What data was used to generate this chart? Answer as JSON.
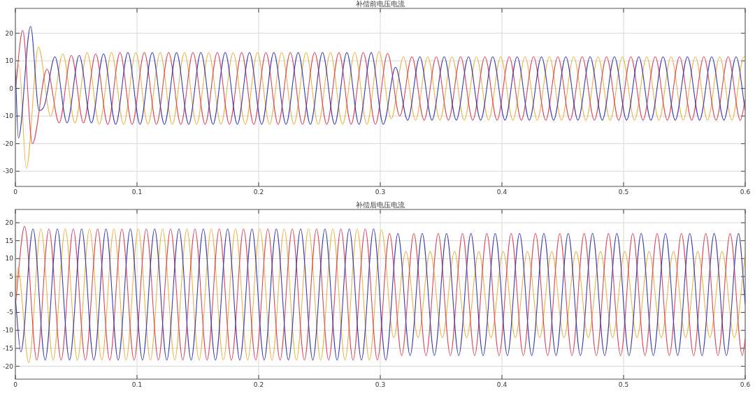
{
  "chart_data": [
    {
      "type": "line",
      "title": "补偿前电压电流",
      "xlim": [
        0,
        0.6
      ],
      "ylim": [
        -35.5,
        29
      ],
      "xticks": [
        0,
        0.1,
        0.2,
        0.3,
        0.4,
        0.5,
        0.6
      ],
      "yticks": [
        -30,
        -20,
        -10,
        0,
        10,
        20
      ],
      "grid": true,
      "series": [
        {
          "color": "#e8b54a",
          "x": [
            0,
            0.003,
            0.009,
            0.019,
            0.029,
            0.039,
            0.049,
            0.059,
            0.069,
            0.079,
            0.089,
            0.099,
            0.109,
            0.119,
            0.129,
            0.139,
            0.149,
            0.159,
            0.169,
            0.179,
            0.189,
            0.199,
            0.209,
            0.219,
            0.229,
            0.239,
            0.249,
            0.259,
            0.269,
            0.279,
            0.289,
            0.299,
            0.309,
            0.319,
            0.329,
            0.339,
            0.349,
            0.359,
            0.369,
            0.379,
            0.389,
            0.399,
            0.409,
            0.419,
            0.429,
            0.439,
            0.449,
            0.459,
            0.469,
            0.479,
            0.489,
            0.499,
            0.509,
            0.519,
            0.529,
            0.539,
            0.549,
            0.559,
            0.569,
            0.579,
            0.589,
            0.599,
            0.6
          ],
          "values": [
            0,
            8.5,
            -29,
            15,
            -10,
            12.5,
            -12.5,
            13,
            -13,
            13,
            -13,
            13,
            -13,
            13,
            -13,
            13,
            -13,
            13,
            -13,
            13,
            -13,
            13,
            -13,
            13,
            -13,
            13,
            -13,
            13,
            -13,
            13,
            -13,
            13.3,
            -11,
            11.5,
            -11.5,
            11.5,
            -11.5,
            11.5,
            -11.5,
            11.5,
            -11.5,
            11.5,
            -11.5,
            11.5,
            -11.5,
            11.5,
            -11.5,
            11.5,
            -11.5,
            11.5,
            -11.5,
            11.5,
            -11.5,
            11.5,
            -11.5,
            11.5,
            -11.5,
            11.5,
            -11.5,
            11.5,
            -11.5,
            11.5,
            11.3
          ]
        },
        {
          "color": "#d9475d",
          "x": [
            0,
            0.006,
            0.014,
            0.026,
            0.036,
            0.046,
            0.056,
            0.066,
            0.076,
            0.086,
            0.096,
            0.106,
            0.116,
            0.126,
            0.136,
            0.146,
            0.156,
            0.166,
            0.176,
            0.186,
            0.196,
            0.206,
            0.216,
            0.226,
            0.236,
            0.246,
            0.256,
            0.266,
            0.276,
            0.286,
            0.296,
            0.306,
            0.316,
            0.326,
            0.336,
            0.346,
            0.356,
            0.366,
            0.376,
            0.386,
            0.396,
            0.406,
            0.416,
            0.426,
            0.436,
            0.446,
            0.456,
            0.466,
            0.476,
            0.486,
            0.496,
            0.506,
            0.516,
            0.526,
            0.536,
            0.546,
            0.556,
            0.566,
            0.576,
            0.586,
            0.596,
            0.6
          ],
          "values": [
            0,
            21,
            -20,
            7,
            -12.5,
            12,
            -12.5,
            12.5,
            -13,
            13,
            -13,
            13,
            -13,
            13,
            -13,
            13,
            -13,
            13,
            -13,
            13,
            -13,
            13,
            -13,
            13,
            -13,
            13,
            -13,
            13,
            -13,
            13,
            -13,
            12.7,
            -10,
            11.5,
            -11.5,
            11.5,
            -11.5,
            11.5,
            -11.5,
            11.5,
            -11.5,
            11.5,
            -11.5,
            11.5,
            -11.5,
            11.5,
            -11.5,
            11.5,
            -11.5,
            11.5,
            -11.5,
            11.5,
            -11.5,
            11.5,
            -11.5,
            11.5,
            -11.5,
            11.5,
            -11.5,
            11.5,
            -11.5,
            -4
          ]
        },
        {
          "color": "#3b3bb0",
          "x": [
            0,
            0.0025,
            0.0125,
            0.0195,
            0.024,
            0.0325,
            0.0425,
            0.0525,
            0.0625,
            0.0725,
            0.0825,
            0.0925,
            0.1025,
            0.1125,
            0.1225,
            0.1325,
            0.1425,
            0.1525,
            0.1625,
            0.1725,
            0.1825,
            0.1925,
            0.2025,
            0.2125,
            0.2225,
            0.2325,
            0.2425,
            0.2525,
            0.2625,
            0.2725,
            0.2825,
            0.2925,
            0.3025,
            0.3125,
            0.3225,
            0.3325,
            0.3425,
            0.3525,
            0.3625,
            0.3725,
            0.3825,
            0.3925,
            0.4025,
            0.4125,
            0.4225,
            0.4325,
            0.4425,
            0.4525,
            0.4625,
            0.4725,
            0.4825,
            0.4925,
            0.5025,
            0.5125,
            0.5225,
            0.5325,
            0.5425,
            0.5525,
            0.5625,
            0.5725,
            0.5825,
            0.5925,
            0.6
          ],
          "values": [
            7,
            -18,
            22.5,
            -8,
            -6,
            11.5,
            -12.5,
            12,
            -12.5,
            12.5,
            -13,
            13,
            -13,
            13,
            -13,
            13,
            -13,
            13,
            -13,
            13,
            -13,
            13,
            -13,
            13,
            -13,
            13,
            -13,
            13,
            -13,
            13,
            -13,
            13,
            -13,
            7.7,
            -11.5,
            11.5,
            -11.5,
            11.5,
            -11.5,
            11.5,
            -11.5,
            11.5,
            -11.5,
            11.5,
            -11.5,
            11.5,
            -11.5,
            11.5,
            -11.5,
            11.5,
            -11.5,
            11.5,
            -11.5,
            11.5,
            -11.5,
            11.5,
            -11.5,
            11.5,
            -11.5,
            11.5,
            -11.5,
            11.5,
            -8
          ]
        }
      ]
    },
    {
      "type": "line",
      "title": "补偿后电压电流",
      "xlim": [
        0,
        0.6
      ],
      "ylim": [
        -23.6,
        23.7
      ],
      "xticks": [
        0,
        0.1,
        0.2,
        0.3,
        0.4,
        0.5,
        0.6
      ],
      "yticks": [
        -20,
        -15,
        -10,
        -5,
        0,
        5,
        10,
        15,
        20
      ],
      "grid": true,
      "series": [
        {
          "color": "#e8b54a",
          "x": [
            0,
            0.002,
            0.011,
            0.021,
            0.031,
            0.041,
            0.051,
            0.061,
            0.071,
            0.081,
            0.091,
            0.101,
            0.111,
            0.121,
            0.131,
            0.141,
            0.151,
            0.161,
            0.171,
            0.181,
            0.191,
            0.201,
            0.211,
            0.221,
            0.231,
            0.241,
            0.251,
            0.261,
            0.271,
            0.281,
            0.291,
            0.301,
            0.311,
            0.321,
            0.331,
            0.341,
            0.351,
            0.361,
            0.371,
            0.381,
            0.391,
            0.401,
            0.411,
            0.421,
            0.431,
            0.441,
            0.451,
            0.461,
            0.471,
            0.481,
            0.491,
            0.501,
            0.511,
            0.521,
            0.531,
            0.541,
            0.551,
            0.561,
            0.571,
            0.581,
            0.591,
            0.6
          ],
          "values": [
            0,
            7.5,
            -19,
            18.3,
            -18.3,
            18.3,
            -18.3,
            18.3,
            -18.3,
            18.3,
            -18.3,
            18.3,
            -18.3,
            18.3,
            -18.3,
            18.3,
            -18.3,
            18.3,
            -18.3,
            18.3,
            -18.3,
            18.3,
            -18.3,
            18.3,
            -18.3,
            18.3,
            -18.3,
            18.3,
            -18.3,
            18.3,
            -18.3,
            18,
            -12,
            12,
            -12,
            12,
            -12,
            12,
            -12,
            12,
            -12,
            12,
            -12,
            12,
            -12,
            12,
            -12,
            12,
            -12,
            12,
            -12,
            12,
            -12,
            12,
            -12,
            12,
            -12,
            12,
            -12,
            12,
            -12,
            11.4
          ]
        },
        {
          "color": "#d9475d",
          "x": [
            0,
            0.0076,
            0.0176,
            0.0276,
            0.0376,
            0.0476,
            0.0576,
            0.0676,
            0.0776,
            0.0876,
            0.0976,
            0.1076,
            0.1176,
            0.1276,
            0.1376,
            0.1476,
            0.1576,
            0.1676,
            0.1776,
            0.1876,
            0.1976,
            0.2076,
            0.2176,
            0.2276,
            0.2376,
            0.2476,
            0.2576,
            0.2676,
            0.2776,
            0.2876,
            0.2976,
            0.3076,
            0.3176,
            0.3276,
            0.3376,
            0.3476,
            0.3576,
            0.3676,
            0.3776,
            0.3876,
            0.3976,
            0.4076,
            0.4176,
            0.4276,
            0.4376,
            0.4476,
            0.4576,
            0.4676,
            0.4776,
            0.4876,
            0.4976,
            0.5076,
            0.5176,
            0.5276,
            0.5376,
            0.5476,
            0.5576,
            0.5676,
            0.5776,
            0.5876,
            0.5976,
            0.6
          ],
          "values": [
            -3,
            19,
            -18.3,
            18.3,
            -18.3,
            18.3,
            -18.3,
            18.3,
            -18.3,
            18.3,
            -18.3,
            18.3,
            -18.3,
            18.3,
            -18.3,
            18.3,
            -18.3,
            18.3,
            -18.3,
            18.3,
            -18.3,
            18.3,
            -18.3,
            18.3,
            -18.3,
            18.3,
            -18.3,
            18.3,
            -18.3,
            18.3,
            -18.3,
            17,
            -17,
            17,
            -17,
            17,
            -17,
            17,
            -17,
            17,
            -17,
            17,
            -17,
            17,
            -17,
            17,
            -17,
            17,
            -17,
            17,
            -17,
            17,
            -17,
            17,
            -17,
            17,
            -17,
            17,
            -17,
            17,
            -17,
            -12.4
          ]
        },
        {
          "color": "#3b3bb0",
          "x": [
            0,
            0.0045,
            0.0145,
            0.0245,
            0.0345,
            0.0445,
            0.0545,
            0.0645,
            0.0745,
            0.0845,
            0.0945,
            0.1045,
            0.1145,
            0.1245,
            0.1345,
            0.1445,
            0.1545,
            0.1645,
            0.1745,
            0.1845,
            0.1945,
            0.2045,
            0.2145,
            0.2245,
            0.2345,
            0.2445,
            0.2545,
            0.2645,
            0.2745,
            0.2845,
            0.2945,
            0.3045,
            0.3145,
            0.3245,
            0.3345,
            0.3445,
            0.3545,
            0.3645,
            0.3745,
            0.3845,
            0.3945,
            0.4045,
            0.4145,
            0.4245,
            0.4345,
            0.4445,
            0.4545,
            0.4645,
            0.4745,
            0.4845,
            0.4945,
            0.5045,
            0.5145,
            0.5245,
            0.5345,
            0.5445,
            0.5545,
            0.5645,
            0.5745,
            0.5845,
            0.5945,
            0.6
          ],
          "values": [
            -1,
            -16,
            18.3,
            -18.3,
            18.3,
            -18.3,
            18.3,
            -18.3,
            18.3,
            -18.3,
            18.3,
            -18.3,
            18.3,
            -18.3,
            18.3,
            -18.3,
            18.3,
            -18.3,
            18.3,
            -18.3,
            18.3,
            -18.3,
            18.3,
            -18.3,
            18.3,
            -18.3,
            18.3,
            -18.3,
            18.3,
            -18.3,
            18.3,
            -18.3,
            17,
            -17,
            17,
            -17,
            17,
            -17,
            17,
            -17,
            17,
            -17,
            17,
            -17,
            17,
            -17,
            17,
            -17,
            17,
            -17,
            17,
            -17,
            17,
            -17,
            17,
            -17,
            17,
            -17,
            17,
            -17,
            17,
            -2.7
          ]
        }
      ]
    }
  ]
}
